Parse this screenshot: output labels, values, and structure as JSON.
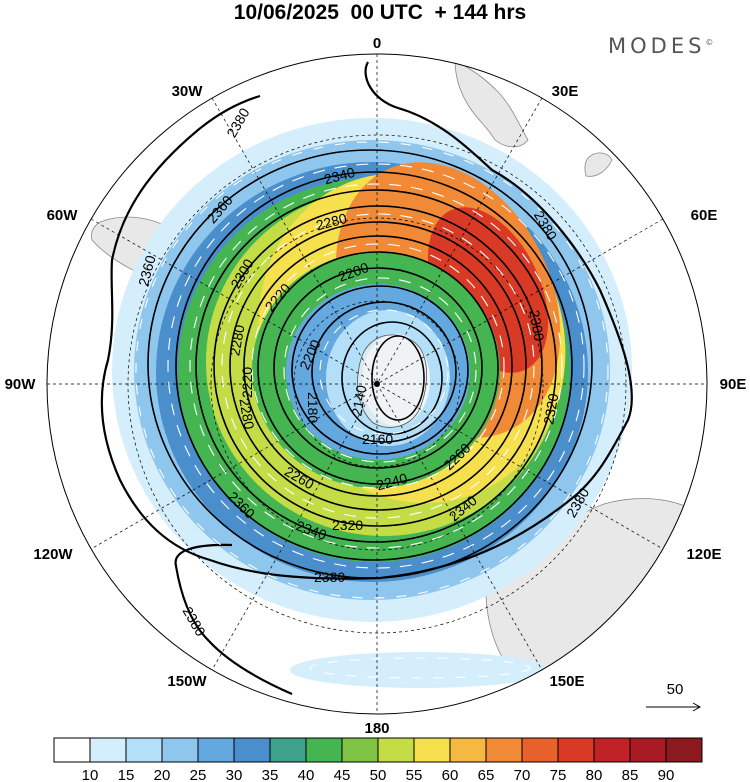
{
  "header": {
    "title": "10/06/2025  00 UTC  + 144 hrs",
    "brand": "MODES",
    "brand_mark": "©"
  },
  "map": {
    "projection": "south-polar-stereographic",
    "longitude_labels": {
      "top": "0",
      "top_right": "30E",
      "upper_right": "60E",
      "right": "90E",
      "lower_right": "120E",
      "bottom_right": "150E",
      "bottom": "180",
      "bottom_left": "150W",
      "lower_left": "120W",
      "left": "90W",
      "upper_left": "60W",
      "top_left": "30W"
    },
    "contour_labels": {
      "c2380_nw": "2380",
      "c2380_ne": "2380",
      "c2380_e": "2380",
      "c2380_s": "2380",
      "c2380_sw": "2380",
      "c2360_nw": "2360",
      "c2360_w": "2360",
      "c2360_sw": "2360",
      "c2340_n": "2340",
      "c2340_se": "2340",
      "c2340_s": "2340",
      "c2320_e": "2320",
      "c2320_s": "2320",
      "c2300_ne": "2300",
      "c2300_nw": "2300",
      "c2280_n": "2280",
      "c2280_w": "2280",
      "c2280_sw": "2280",
      "c2260_se": "2260",
      "c2260_sw": "2260",
      "c2240_s": "2240",
      "c2220_nw": "2220",
      "c2220_w": "2220",
      "c2200_n": "2200",
      "c2200_nw": "2200",
      "c2180_w": "2180",
      "c2160_s": "2160",
      "c2140_c": "2140"
    },
    "vector_scale_value": "50"
  },
  "colorbar": {
    "labels": [
      "10",
      "15",
      "20",
      "25",
      "30",
      "35",
      "40",
      "45",
      "50",
      "55",
      "60",
      "65",
      "70",
      "75",
      "80",
      "85",
      "90"
    ],
    "colors": [
      "#ffffff",
      "#d5eefc",
      "#b3e0f8",
      "#8fc6ee",
      "#64a8e0",
      "#4a8fcc",
      "#3fa08c",
      "#45b552",
      "#7fc444",
      "#c4dc46",
      "#f6e04e",
      "#f5b843",
      "#f18a36",
      "#e8602c",
      "#d83a26",
      "#c02228",
      "#a81b24",
      "#8a1a1e"
    ]
  }
}
